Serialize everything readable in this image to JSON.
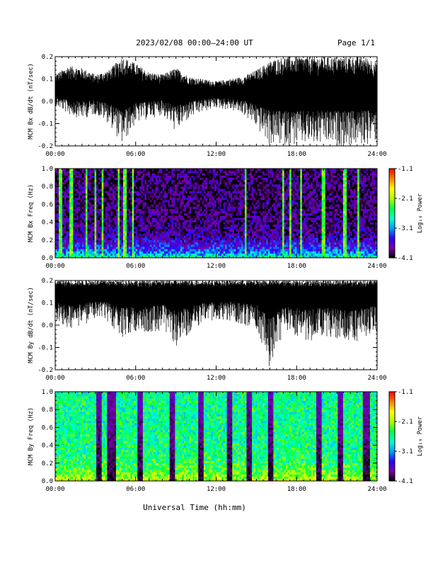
{
  "header": {
    "date_range": "2023/02/08  00:00–24:00 UT",
    "page": "Page 1/1"
  },
  "x_axis": {
    "title": "Universal Time (hh:mm)",
    "tick_labels": [
      "00:00",
      "06:00",
      "12:00",
      "18:00",
      "24:00"
    ],
    "range_hours": [
      0,
      24
    ]
  },
  "colorbar": {
    "title": "Log₁₀ Power",
    "tick_labels": [
      "-1.1",
      "-2.1",
      "-3.1",
      "-4.1"
    ],
    "tick_values": [
      -1.1,
      -2.1,
      -3.1,
      -4.1
    ],
    "range": [
      -4.1,
      -1.1
    ],
    "colors": [
      "#000000",
      "#7a00a8",
      "#2a00ff",
      "#00a0ff",
      "#00ffd0",
      "#00ff40",
      "#b0ff00",
      "#ffff00",
      "#ff8000",
      "#ff0000"
    ]
  },
  "chart_data": [
    {
      "type": "line",
      "panel": "bx-timeseries",
      "ylabel": "MCM Bx dB/dt (nT/sec)",
      "ylim": [
        -0.2,
        0.2
      ],
      "y_tick_labels": [
        "0.2",
        "0.1",
        "0.0",
        "-0.1",
        "-0.2"
      ],
      "y_tick_values": [
        0.2,
        0.1,
        0.0,
        -0.1,
        -0.2
      ],
      "series": [
        {
          "x_hours": [
            0,
            1,
            2,
            3,
            4,
            5,
            6,
            7,
            8,
            9,
            10,
            11,
            12,
            13,
            14,
            15,
            16,
            17,
            18,
            19,
            20,
            21,
            22,
            23,
            24
          ],
          "upper": [
            0.12,
            0.16,
            0.15,
            0.12,
            0.14,
            0.2,
            0.17,
            0.13,
            0.12,
            0.15,
            0.11,
            0.1,
            0.09,
            0.1,
            0.11,
            0.14,
            0.18,
            0.2,
            0.2,
            0.2,
            0.2,
            0.2,
            0.2,
            0.2,
            0.18
          ],
          "lower": [
            -0.02,
            -0.06,
            -0.08,
            -0.06,
            -0.1,
            -0.2,
            -0.1,
            -0.08,
            -0.06,
            -0.14,
            -0.08,
            -0.05,
            -0.03,
            -0.04,
            -0.06,
            -0.12,
            -0.2,
            -0.2,
            -0.2,
            -0.2,
            -0.2,
            -0.2,
            -0.2,
            -0.2,
            -0.18
          ],
          "mean": 0.04
        }
      ]
    },
    {
      "type": "heatmap",
      "panel": "bx-spectrogram",
      "ylabel": "MCM Bx Freq (Hz)",
      "ylim": [
        0,
        1
      ],
      "y_tick_labels": [
        "1.0",
        "0.8",
        "0.6",
        "0.4",
        "0.2",
        "0.0"
      ],
      "y_tick_values": [
        1.0,
        0.8,
        0.6,
        0.4,
        0.2,
        0.0
      ],
      "background_log_power": -3.9,
      "low_freq_log_power": -2.6,
      "bright_stripe_hours": [
        0.3,
        0.5,
        1.2,
        2.3,
        3.0,
        3.5,
        4.7,
        5.2,
        5.8,
        14.2,
        17.0,
        17.5,
        18.3,
        20.0,
        21.6,
        22.6
      ]
    },
    {
      "type": "line",
      "panel": "by-timeseries",
      "ylabel": "MCM By dB/dt (nT/sec)",
      "ylim": [
        -0.2,
        0.2
      ],
      "y_tick_labels": [
        "0.2",
        "0.1",
        "0.0",
        "-0.1",
        "-0.2"
      ],
      "y_tick_values": [
        0.2,
        0.1,
        0.0,
        -0.1,
        -0.2
      ],
      "series": [
        {
          "x_hours": [
            0,
            1,
            2,
            3,
            4,
            5,
            6,
            7,
            8,
            9,
            10,
            11,
            12,
            13,
            14,
            15,
            16,
            17,
            18,
            19,
            20,
            21,
            22,
            23,
            24
          ],
          "upper": [
            0.2,
            0.2,
            0.2,
            0.2,
            0.2,
            0.2,
            0.2,
            0.2,
            0.2,
            0.2,
            0.2,
            0.2,
            0.2,
            0.2,
            0.2,
            0.2,
            0.2,
            0.2,
            0.2,
            0.2,
            0.2,
            0.2,
            0.2,
            0.2,
            0.2
          ],
          "lower": [
            0.02,
            -0.02,
            0.0,
            0.02,
            0.01,
            -0.06,
            -0.04,
            -0.04,
            -0.02,
            -0.1,
            -0.04,
            0.0,
            0.02,
            0.02,
            0.0,
            -0.02,
            -0.2,
            -0.04,
            -0.06,
            -0.08,
            -0.05,
            -0.07,
            -0.1,
            -0.06,
            -0.03
          ],
          "mean": 0.15
        }
      ]
    },
    {
      "type": "heatmap",
      "panel": "by-spectrogram",
      "ylabel": "MCM By Freq (Hz)",
      "ylim": [
        0,
        1
      ],
      "y_tick_labels": [
        "1.0",
        "0.8",
        "0.6",
        "0.4",
        "0.2",
        "0.0"
      ],
      "y_tick_values": [
        1.0,
        0.8,
        0.6,
        0.4,
        0.2,
        0.0
      ],
      "background_log_power": -2.6,
      "low_freq_log_power": -1.9,
      "dark_gap_hours": [
        3.2,
        4.0,
        4.4,
        6.3,
        8.7,
        10.9,
        13.0,
        14.5,
        16.1,
        19.6,
        21.3,
        23.2
      ]
    }
  ]
}
